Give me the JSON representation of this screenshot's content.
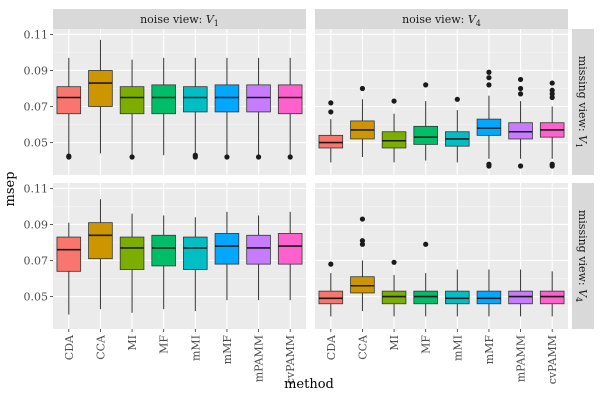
{
  "chart_data": {
    "type": "boxplot",
    "xlabel": "method",
    "ylabel": "msep",
    "ylim": [
      0.032,
      0.113
    ],
    "yticks": [
      0.05,
      0.07,
      0.09,
      0.11
    ],
    "ytick_labels": [
      "0.05",
      "0.07",
      "0.09",
      "0.11"
    ],
    "categories": [
      "CDA",
      "CCA",
      "MI",
      "MF",
      "mMI",
      "mMF",
      "mPAMM",
      "cvPAMM"
    ],
    "colors": [
      "#F8766D",
      "#CD9600",
      "#7CAE00",
      "#00BE67",
      "#00BFC4",
      "#00A9FF",
      "#C77CFF",
      "#FF61CC"
    ],
    "col_strips": [
      {
        "prefix": "noise view: ",
        "var": "V",
        "sub": "1"
      },
      {
        "prefix": "noise view: ",
        "var": "V",
        "sub": "4"
      }
    ],
    "row_strips": [
      {
        "prefix": "missing view: ",
        "var": "V",
        "sub": "1"
      },
      {
        "prefix": "missing view: ",
        "var": "V",
        "sub": "4"
      }
    ],
    "panels": [
      {
        "row": 0,
        "col": 0,
        "noise_view": "V1",
        "missing_view": "V1",
        "boxes": [
          {
            "min": 0.043,
            "q1": 0.066,
            "median": 0.075,
            "q3": 0.081,
            "max": 0.097,
            "outliers": [
              0.042,
              0.0425
            ]
          },
          {
            "min": 0.044,
            "q1": 0.07,
            "median": 0.083,
            "q3": 0.09,
            "max": 0.107,
            "outliers": []
          },
          {
            "min": 0.043,
            "q1": 0.066,
            "median": 0.075,
            "q3": 0.081,
            "max": 0.096,
            "outliers": [
              0.042
            ]
          },
          {
            "min": 0.043,
            "q1": 0.066,
            "median": 0.075,
            "q3": 0.082,
            "max": 0.097,
            "outliers": []
          },
          {
            "min": 0.044,
            "q1": 0.067,
            "median": 0.075,
            "q3": 0.081,
            "max": 0.097,
            "outliers": [
              0.042,
              0.043
            ]
          },
          {
            "min": 0.043,
            "q1": 0.067,
            "median": 0.075,
            "q3": 0.082,
            "max": 0.097,
            "outliers": [
              0.042
            ]
          },
          {
            "min": 0.043,
            "q1": 0.067,
            "median": 0.075,
            "q3": 0.082,
            "max": 0.097,
            "outliers": [
              0.042
            ]
          },
          {
            "min": 0.043,
            "q1": 0.066,
            "median": 0.075,
            "q3": 0.082,
            "max": 0.097,
            "outliers": [
              0.042
            ]
          }
        ]
      },
      {
        "row": 0,
        "col": 1,
        "noise_view": "V4",
        "missing_view": "V1",
        "boxes": [
          {
            "min": 0.039,
            "q1": 0.047,
            "median": 0.05,
            "q3": 0.054,
            "max": 0.063,
            "outliers": [
              0.067,
              0.072
            ]
          },
          {
            "min": 0.042,
            "q1": 0.052,
            "median": 0.057,
            "q3": 0.062,
            "max": 0.074,
            "outliers": [
              0.08
            ]
          },
          {
            "min": 0.039,
            "q1": 0.047,
            "median": 0.051,
            "q3": 0.056,
            "max": 0.066,
            "outliers": [
              0.073
            ]
          },
          {
            "min": 0.04,
            "q1": 0.049,
            "median": 0.053,
            "q3": 0.059,
            "max": 0.073,
            "outliers": [
              0.082
            ]
          },
          {
            "min": 0.039,
            "q1": 0.048,
            "median": 0.052,
            "q3": 0.056,
            "max": 0.068,
            "outliers": [
              0.074
            ]
          },
          {
            "min": 0.041,
            "q1": 0.054,
            "median": 0.058,
            "q3": 0.063,
            "max": 0.076,
            "outliers": [
              0.037,
              0.038,
              0.082,
              0.086,
              0.089
            ]
          },
          {
            "min": 0.041,
            "q1": 0.052,
            "median": 0.056,
            "q3": 0.061,
            "max": 0.073,
            "outliers": [
              0.037,
              0.077,
              0.08,
              0.085
            ]
          },
          {
            "min": 0.041,
            "q1": 0.053,
            "median": 0.057,
            "q3": 0.061,
            "max": 0.07,
            "outliers": [
              0.037,
              0.038,
              0.075,
              0.077,
              0.079,
              0.083
            ]
          }
        ]
      },
      {
        "row": 1,
        "col": 0,
        "noise_view": "V1",
        "missing_view": "V4",
        "boxes": [
          {
            "min": 0.04,
            "q1": 0.064,
            "median": 0.076,
            "q3": 0.083,
            "max": 0.091,
            "outliers": []
          },
          {
            "min": 0.043,
            "q1": 0.071,
            "median": 0.084,
            "q3": 0.091,
            "max": 0.104,
            "outliers": []
          },
          {
            "min": 0.041,
            "q1": 0.065,
            "median": 0.077,
            "q3": 0.083,
            "max": 0.096,
            "outliers": []
          },
          {
            "min": 0.043,
            "q1": 0.067,
            "median": 0.077,
            "q3": 0.084,
            "max": 0.095,
            "outliers": []
          },
          {
            "min": 0.042,
            "q1": 0.065,
            "median": 0.077,
            "q3": 0.083,
            "max": 0.094,
            "outliers": []
          },
          {
            "min": 0.048,
            "q1": 0.068,
            "median": 0.078,
            "q3": 0.085,
            "max": 0.097,
            "outliers": []
          },
          {
            "min": 0.048,
            "q1": 0.068,
            "median": 0.077,
            "q3": 0.084,
            "max": 0.095,
            "outliers": []
          },
          {
            "min": 0.048,
            "q1": 0.068,
            "median": 0.078,
            "q3": 0.085,
            "max": 0.097,
            "outliers": []
          }
        ]
      },
      {
        "row": 1,
        "col": 1,
        "noise_view": "V4",
        "missing_view": "V4",
        "boxes": [
          {
            "min": 0.039,
            "q1": 0.046,
            "median": 0.049,
            "q3": 0.053,
            "max": 0.063,
            "outliers": [
              0.068
            ]
          },
          {
            "min": 0.042,
            "q1": 0.052,
            "median": 0.056,
            "q3": 0.061,
            "max": 0.07,
            "outliers": [
              0.079,
              0.081,
              0.093
            ]
          },
          {
            "min": 0.039,
            "q1": 0.046,
            "median": 0.05,
            "q3": 0.053,
            "max": 0.062,
            "outliers": [
              0.069
            ]
          },
          {
            "min": 0.039,
            "q1": 0.046,
            "median": 0.05,
            "q3": 0.053,
            "max": 0.063,
            "outliers": [
              0.079
            ]
          },
          {
            "min": 0.039,
            "q1": 0.046,
            "median": 0.049,
            "q3": 0.053,
            "max": 0.065,
            "outliers": []
          },
          {
            "min": 0.039,
            "q1": 0.046,
            "median": 0.049,
            "q3": 0.053,
            "max": 0.065,
            "outliers": []
          },
          {
            "min": 0.039,
            "q1": 0.046,
            "median": 0.05,
            "q3": 0.053,
            "max": 0.065,
            "outliers": []
          },
          {
            "min": 0.039,
            "q1": 0.046,
            "median": 0.05,
            "q3": 0.053,
            "max": 0.064,
            "outliers": []
          }
        ]
      }
    ]
  }
}
